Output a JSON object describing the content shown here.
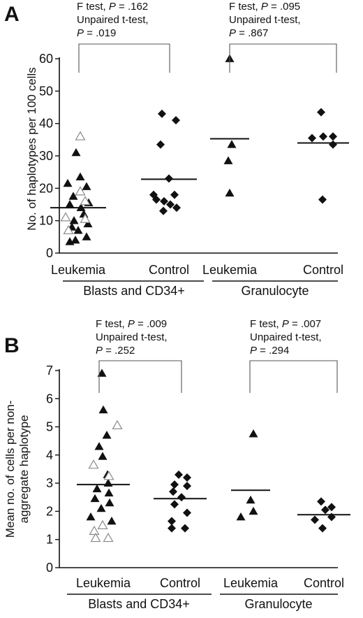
{
  "chart_data": [
    {
      "panel_label": "A",
      "type": "scatter",
      "ylabel": "No. of haplotypes per 100 cells",
      "ylim": [
        0,
        60
      ],
      "yticks": [
        "0",
        "10",
        "20",
        "30",
        "40",
        "50",
        "60"
      ],
      "groups": [
        {
          "label": "Leukemia",
          "marker": "triangle",
          "mean": 14,
          "filled_values": [
            31,
            23.5,
            21.5,
            20.5,
            17.5,
            15.5,
            15,
            14,
            12,
            11,
            10,
            9,
            8,
            7,
            5,
            4,
            3.5
          ],
          "open_values": [
            36,
            19,
            16,
            11,
            10.5,
            7
          ]
        },
        {
          "label": "Control",
          "marker": "diamond",
          "mean": 22.8,
          "filled_values": [
            43,
            41,
            33.5,
            23,
            18,
            18,
            16.5,
            16,
            15,
            14,
            13
          ],
          "open_values": []
        },
        {
          "label": "Leukemia",
          "marker": "triangle",
          "mean": 35.3,
          "filled_values": [
            60,
            33.5,
            28.5,
            18.5
          ],
          "open_values": []
        },
        {
          "label": "Control",
          "marker": "diamond",
          "mean": 34,
          "filled_values": [
            43.5,
            35.5,
            36,
            36,
            33.5,
            16.5
          ],
          "open_values": []
        }
      ],
      "category_groups": [
        "Blasts and CD34+",
        "Granulocyte"
      ],
      "comparisons": [
        {
          "lines": [
            "F test, ",
            "P",
            " = .162",
            "Unpaired t-test,",
            "P",
            " = .019"
          ]
        },
        {
          "lines": [
            "F test, ",
            "P",
            " = .095",
            "Unpaired t-test,",
            "P",
            " = .867"
          ]
        }
      ]
    },
    {
      "panel_label": "B",
      "type": "scatter",
      "ylabel": "Mean no. of cells per non-aggregate haplotype",
      "ylabel_lines": [
        "Mean no. of cells per non-",
        "aggregate haplotype"
      ],
      "ylim": [
        0,
        7
      ],
      "yticks": [
        "0",
        "1",
        "2",
        "3",
        "4",
        "5",
        "6",
        "7"
      ],
      "groups": [
        {
          "label": "Leukemia",
          "marker": "triangle",
          "mean": 2.95,
          "filled_values": [
            6.9,
            5.6,
            4.7,
            4.3,
            3.95,
            3.3,
            3.0,
            2.8,
            2.65,
            2.45,
            2.3,
            2.1,
            1.8,
            1.65
          ],
          "open_values": [
            5.05,
            3.65,
            3.25,
            1.5,
            1.3,
            1.05,
            1.05
          ]
        },
        {
          "label": "Control",
          "marker": "diamond",
          "mean": 2.45,
          "filled_values": [
            3.3,
            3.2,
            2.95,
            2.9,
            2.7,
            2.5,
            2.25,
            1.95,
            1.65,
            1.4,
            1.4
          ],
          "open_values": []
        },
        {
          "label": "Leukemia",
          "marker": "triangle",
          "mean": 2.75,
          "filled_values": [
            4.75,
            2.4,
            2.0,
            1.8
          ],
          "open_values": []
        },
        {
          "label": "Control",
          "marker": "diamond",
          "mean": 1.88,
          "filled_values": [
            2.35,
            2.15,
            2.05,
            1.8,
            1.7,
            1.4
          ],
          "open_values": []
        }
      ],
      "category_groups": [
        "Blasts and CD34+",
        "Granulocyte"
      ],
      "comparisons": [
        {
          "lines": [
            "F test, ",
            "P",
            " = .009",
            "Unpaired t-test,",
            "P",
            " = .252"
          ]
        },
        {
          "lines": [
            "F test, ",
            "P",
            " = .007",
            "Unpaired t-test,",
            "P",
            " = .294"
          ]
        }
      ]
    }
  ]
}
